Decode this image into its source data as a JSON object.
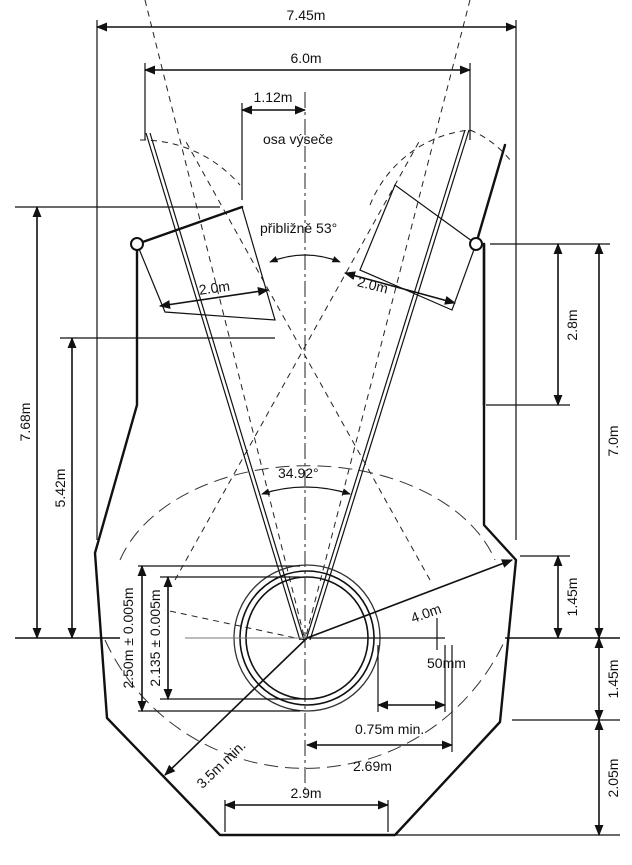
{
  "diagram": {
    "overall_width": "7.45m",
    "inner_width": "6.0m",
    "offset_top": "1.12m",
    "axis_label": "osa výseče",
    "sector_angle": "přibližně 53°",
    "gate_left_width": "2.0m",
    "gate_right_width": "2.0m",
    "height_left_outer": "7.68m",
    "height_left_inner": "5.42m",
    "height_right_upper": "2.8m",
    "height_right_total": "7.0m",
    "landing_angle": "34.92°",
    "circle_outer_diameter": "2.50m ± 0.005m",
    "circle_inner_diameter": "2.135 ± 0.005m",
    "radius_outer": "4.0m",
    "radius_inner": "3.5m min.",
    "right_upper_front": "1.45m",
    "right_lower_front": "1.45m",
    "bottom_right": "2.05m",
    "tolerance": "50mm",
    "clearance": "0.75m min.",
    "offset_right": "2.69m",
    "bottom_width": "2.9m"
  },
  "colors": {
    "line": "#111111",
    "dashed": "#222222",
    "background": "#ffffff"
  }
}
